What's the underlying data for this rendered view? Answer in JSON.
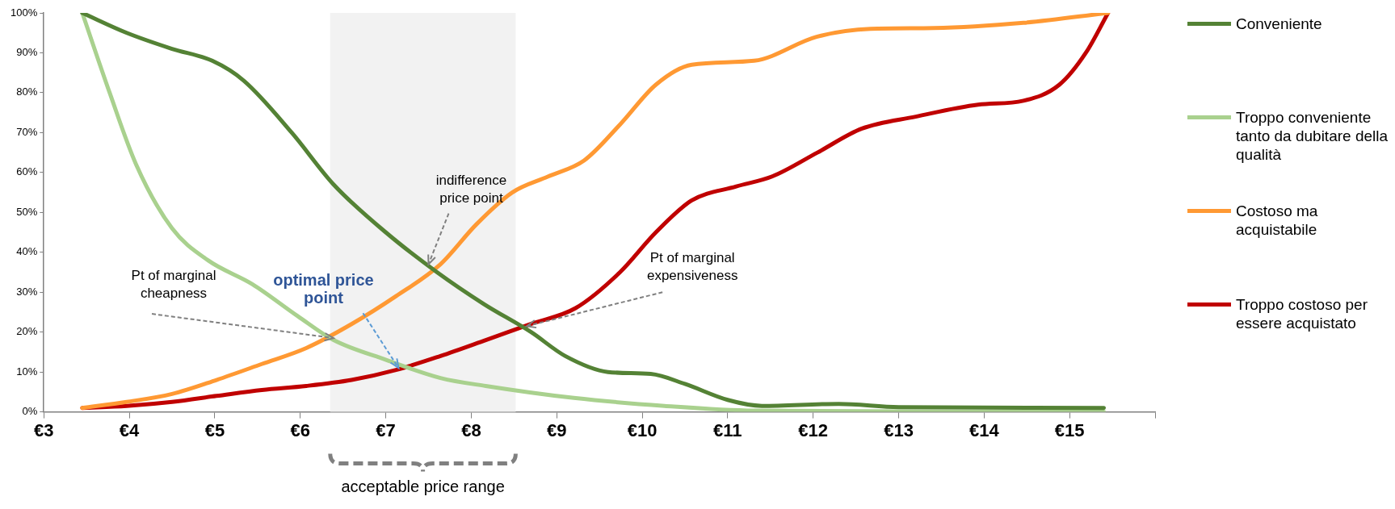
{
  "chart_data": {
    "type": "line",
    "xlim": [
      3,
      16
    ],
    "xticks": [
      {
        "value": 3,
        "label": "€3"
      },
      {
        "value": 4,
        "label": "€4"
      },
      {
        "value": 5,
        "label": "€5"
      },
      {
        "value": 6,
        "label": "€6"
      },
      {
        "value": 7,
        "label": "€7"
      },
      {
        "value": 8,
        "label": "€8"
      },
      {
        "value": 9,
        "label": "€9"
      },
      {
        "value": 10,
        "label": "€10"
      },
      {
        "value": 11,
        "label": "€11"
      },
      {
        "value": 12,
        "label": "€12"
      },
      {
        "value": 13,
        "label": "€13"
      },
      {
        "value": 14,
        "label": "€14"
      },
      {
        "value": 15,
        "label": "€15"
      },
      {
        "value": 16,
        "label": null
      }
    ],
    "ylim": [
      0,
      100
    ],
    "yticks": [
      {
        "value": 0,
        "label": "0%"
      },
      {
        "value": 10,
        "label": "10%"
      },
      {
        "value": 20,
        "label": "20%"
      },
      {
        "value": 30,
        "label": "30%"
      },
      {
        "value": 40,
        "label": "40%"
      },
      {
        "value": 50,
        "label": "50%"
      },
      {
        "value": 60,
        "label": "60%"
      },
      {
        "value": 70,
        "label": "70%"
      },
      {
        "value": 80,
        "label": "80%"
      },
      {
        "value": 90,
        "label": "90%"
      },
      {
        "value": 100,
        "label": "100%"
      }
    ],
    "grid": false,
    "legend": "right",
    "marker": "none",
    "line_style": "solid",
    "series": [
      {
        "name": "Conveniente",
        "color": "#548235",
        "x": [
          3.45,
          3.97,
          4.5,
          4.97,
          5.34,
          5.9,
          6.39,
          7.0,
          7.6,
          8.15,
          8.7,
          9.1,
          9.6,
          10.1,
          10.5,
          11.0,
          11.4,
          12.3,
          13.0,
          15.4
        ],
        "values": [
          100,
          95,
          91,
          88,
          83,
          70,
          57,
          45,
          35,
          27,
          20,
          14,
          10,
          9.5,
          7,
          3,
          1.5,
          2,
          1.2,
          1
        ]
      },
      {
        "name": "Troppo conveniente tanto da dubitare della qualità",
        "color": "#a9d18e",
        "x": [
          3.45,
          3.77,
          4.08,
          4.5,
          4.92,
          5.44,
          5.97,
          6.39,
          7.01,
          7.64,
          8.17,
          9.2,
          10.26,
          11.31,
          15.4
        ],
        "values": [
          100,
          80,
          62,
          46,
          38,
          32,
          24,
          18,
          13,
          8.5,
          6.5,
          3.5,
          1.5,
          0.3,
          0
        ]
      },
      {
        "name": "Costoso ma acquistabile",
        "color": "#ff9933",
        "x": [
          3.45,
          3.97,
          4.5,
          5.02,
          5.55,
          6.07,
          6.6,
          7.12,
          7.64,
          8.06,
          8.48,
          8.9,
          9.32,
          9.74,
          10.16,
          10.58,
          11.31,
          12.04,
          12.67,
          13.41,
          14.46,
          15.45
        ],
        "values": [
          1,
          2.5,
          4.5,
          8,
          12,
          16,
          22,
          29,
          37,
          47,
          55,
          59,
          63,
          72,
          82,
          87,
          88,
          94,
          96,
          96.2,
          97.5,
          100
        ]
      },
      {
        "name": "Troppo costoso per essere acquistato",
        "color": "#c00000",
        "x": [
          3.45,
          3.97,
          4.5,
          5.02,
          5.55,
          6.07,
          6.6,
          7.12,
          7.64,
          8.17,
          8.69,
          9.22,
          9.74,
          10.16,
          10.58,
          11.1,
          11.52,
          12.05,
          12.57,
          13.2,
          13.93,
          14.46,
          14.88,
          15.19,
          15.45
        ],
        "values": [
          1,
          1.5,
          2.5,
          4,
          5.5,
          6.5,
          8,
          10.5,
          14,
          18,
          22,
          26,
          35,
          45,
          53,
          56.5,
          59,
          65,
          71,
          74,
          77,
          78,
          82,
          90,
          100
        ]
      }
    ],
    "bands": [
      {
        "axis": "x",
        "from": 6.35,
        "to": 8.52,
        "color": "#f2f2f2"
      }
    ],
    "annotations": [
      {
        "text": "indifference price point",
        "x": 7.5,
        "y": 37
      },
      {
        "text": "Pt of marginal cheapness",
        "x": 6.39,
        "y": 18.5
      },
      {
        "text": "optimal price point",
        "x": 7.15,
        "y": 11
      },
      {
        "text": "Pt of marginal expensiveness",
        "x": 8.65,
        "y": 21.5
      },
      "acceptable price range"
    ]
  }
}
